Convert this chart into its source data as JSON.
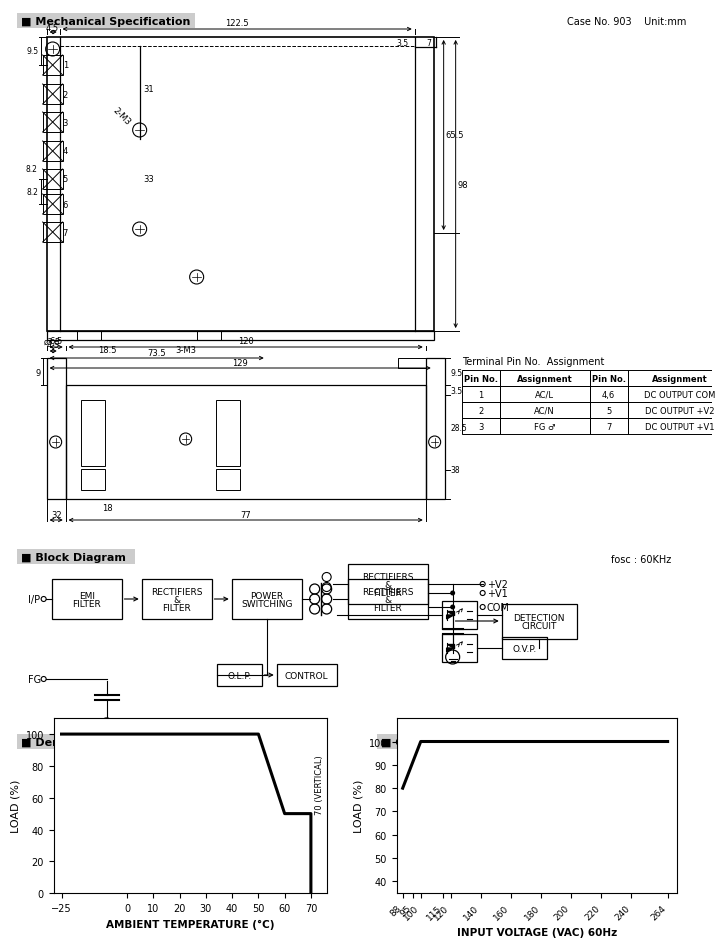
{
  "bg_color": "#ffffff",
  "derating_curve": {
    "x": [
      -25,
      0,
      10,
      20,
      30,
      40,
      50,
      60,
      70,
      70
    ],
    "y": [
      100,
      100,
      100,
      100,
      100,
      100,
      100,
      50,
      50,
      0
    ],
    "xlabel": "AMBIENT TEMPERATURE (°C)",
    "ylabel": "LOAD (%)",
    "xlim": [
      -28,
      76
    ],
    "ylim": [
      0,
      110
    ],
    "xticks": [
      -25,
      0,
      10,
      20,
      30,
      40,
      50,
      60,
      70
    ],
    "yticks": [
      0,
      20,
      40,
      60,
      80,
      100
    ]
  },
  "output_derating": {
    "x": [
      88,
      100,
      115,
      120,
      140,
      160,
      180,
      200,
      220,
      240,
      264
    ],
    "y": [
      80,
      100,
      100,
      100,
      100,
      100,
      100,
      100,
      100,
      100,
      100
    ],
    "xlabel": "INPUT VOLTAGE (VAC) 60Hz",
    "ylabel": "LOAD (%)",
    "xlim": [
      84,
      270
    ],
    "ylim": [
      35,
      110
    ],
    "xticks": [
      88,
      95,
      100,
      115,
      120,
      140,
      160,
      180,
      200,
      220,
      240,
      264
    ],
    "yticks": [
      40,
      50,
      60,
      70,
      80,
      90,
      100
    ]
  }
}
